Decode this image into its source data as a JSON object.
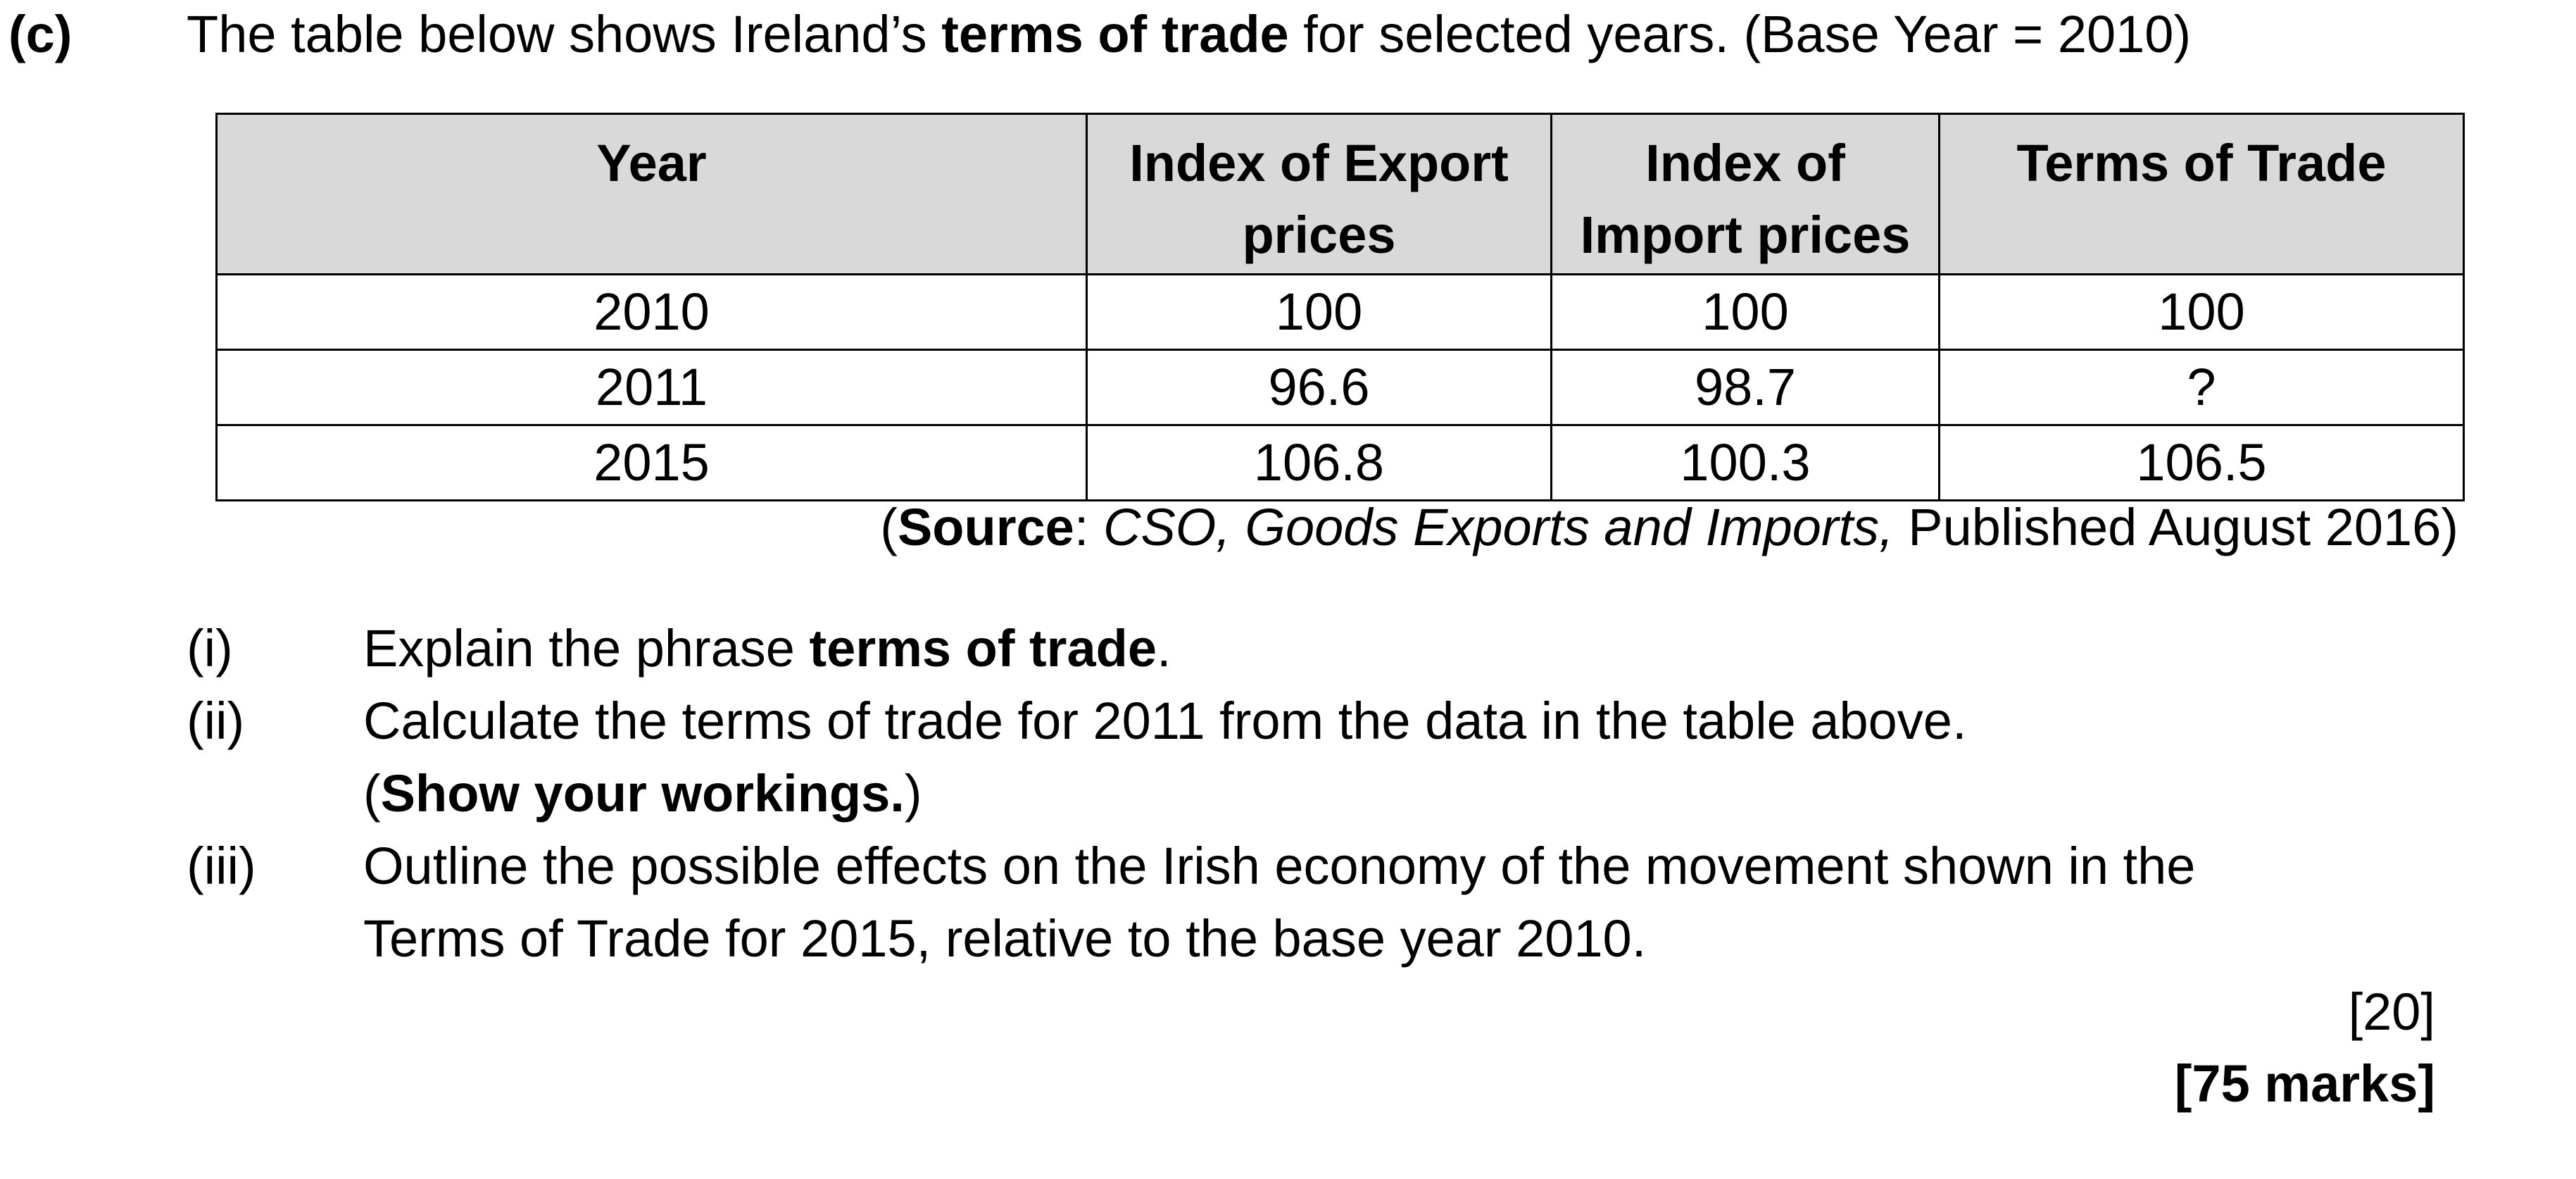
{
  "question": {
    "part_label": "(c)",
    "intro_before": "The table below shows Ireland’s ",
    "intro_bold": "terms of trade",
    "intro_after": " for selected years. (Base Year = 2010)"
  },
  "table": {
    "headers": [
      [
        "Year"
      ],
      [
        "Index of Export",
        "prices"
      ],
      [
        "Index of",
        "Import prices"
      ],
      [
        "Terms of Trade"
      ]
    ],
    "rows": [
      [
        "2010",
        "100",
        "100",
        "100"
      ],
      [
        "2011",
        "96.6",
        "98.7",
        "?"
      ],
      [
        "2015",
        "106.8",
        "100.3",
        "106.5"
      ]
    ]
  },
  "source": {
    "open": "(",
    "label": "Source",
    "colon": ": ",
    "publication": "CSO, Goods Exports and Imports,",
    "published": " Published August 2016)"
  },
  "subquestions": {
    "i": {
      "num": "(i)",
      "text_before": "Explain the phrase ",
      "text_bold": "terms of trade",
      "text_after": "."
    },
    "ii": {
      "num": "(ii)",
      "line1": "Calculate the terms of trade for 2011 from the data in the table above.",
      "line2_open": "(",
      "line2_bold": "Show your workings.",
      "line2_close": ")"
    },
    "iii": {
      "num": "(iii)",
      "line1": "Outline the possible effects on the Irish economy of the movement shown in the",
      "line2": "Terms of Trade for 2015, relative to the base year 2010."
    }
  },
  "marks": {
    "part": "[20]",
    "total": "[75 marks]"
  }
}
